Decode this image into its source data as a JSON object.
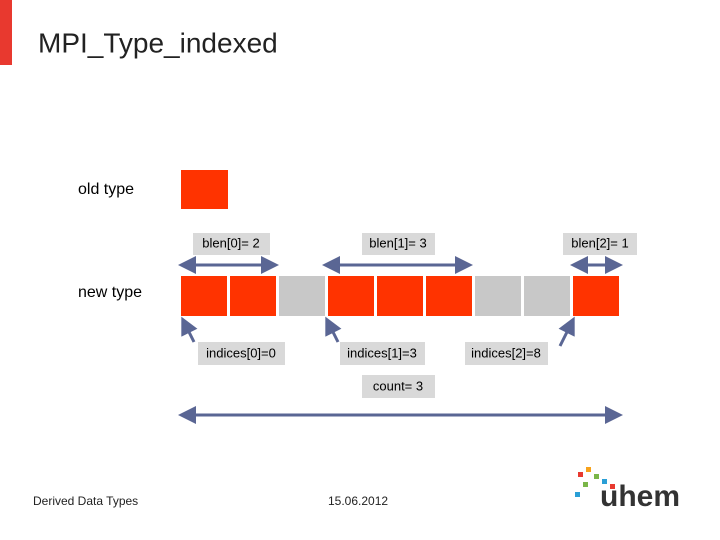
{
  "header": {
    "title": "MPI_Type_indexed"
  },
  "diagram": {
    "old_type_label": "old type",
    "new_type_label": "new type",
    "blocklengths": [
      "blen[0]= 2",
      "blen[1]= 3",
      "blen[2]= 1"
    ],
    "indices": [
      "indices[0]=0",
      "indices[1]=3",
      "indices[2]=8"
    ],
    "count": "count= 3"
  },
  "footer": {
    "left": "Derived Data Types",
    "date": "15.06.2012",
    "logo": "uhem"
  }
}
